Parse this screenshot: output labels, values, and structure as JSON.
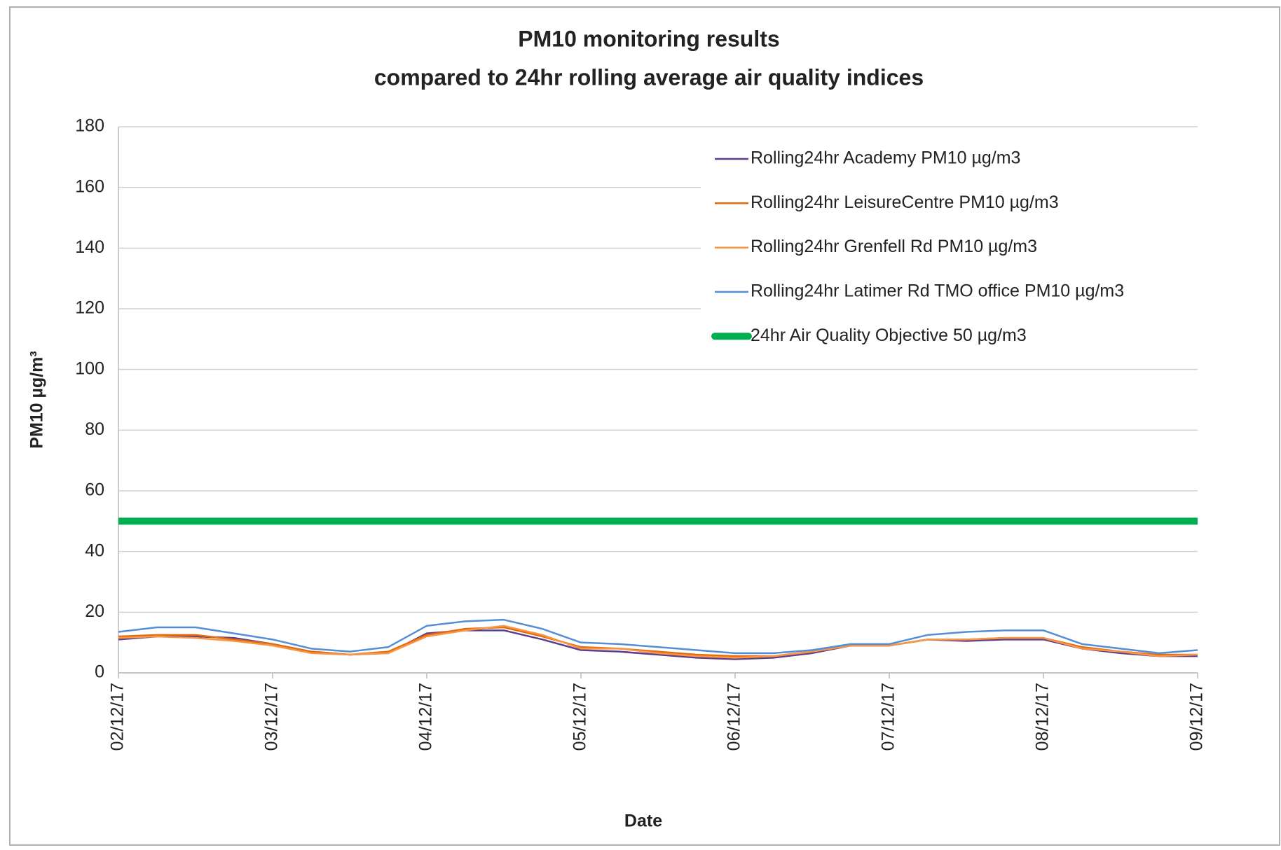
{
  "chart_data": {
    "type": "line",
    "title": [
      "PM10 monitoring results",
      "compared to 24hr rolling average air quality indices"
    ],
    "y_label": "PM10 µg/m³",
    "x_label": "Date",
    "categories": [
      "02/12/17",
      null,
      null,
      null,
      "03/12/17",
      null,
      null,
      null,
      "04/12/17",
      null,
      null,
      null,
      "05/12/17",
      null,
      null,
      null,
      "06/12/17",
      null,
      null,
      null,
      "07/12/17",
      null,
      null,
      null,
      "08/12/17",
      null,
      null,
      null,
      "09/12/17"
    ],
    "ylim": [
      0,
      180
    ],
    "yticks": [
      0,
      20,
      40,
      60,
      80,
      100,
      120,
      140,
      160,
      180
    ],
    "grid": true,
    "legend": "upper right",
    "series": [
      {
        "name": "Rolling24hr Academy PM10 µg/m3",
        "color": "#5b3f8c",
        "width": 2.5,
        "values": [
          11,
          12,
          12,
          11.5,
          9.5,
          7,
          6,
          6.5,
          13,
          14,
          14,
          11,
          7.5,
          7,
          6,
          5,
          4.5,
          5,
          6.5,
          9,
          9,
          11,
          10.5,
          11,
          11,
          8,
          6.5,
          5.5,
          5.5
        ]
      },
      {
        "name": "Rolling24hr LeisureCentre PM10 µg/m3",
        "color": "#e36c0a",
        "width": 2.5,
        "values": [
          12,
          12.5,
          12.5,
          11,
          9.5,
          7,
          6,
          7,
          12.5,
          14.5,
          15,
          12,
          8.5,
          8,
          7,
          6,
          5.5,
          5.5,
          7,
          9,
          9,
          11,
          11,
          11.5,
          11.5,
          8.5,
          7,
          6,
          6
        ]
      },
      {
        "name": "Rolling24hr Grenfell Rd PM10 µg/m3",
        "color": "#f79646",
        "width": 2.5,
        "values": [
          11.5,
          12,
          11.5,
          10.5,
          9,
          6.5,
          6,
          6.5,
          12,
          14,
          15.5,
          12.5,
          8,
          8,
          6.5,
          5.5,
          5,
          5.5,
          7,
          9,
          9,
          11,
          11,
          11.5,
          11.5,
          8,
          7,
          5.5,
          6
        ]
      },
      {
        "name": "Rolling24hr Latimer Rd TMO office PM10 µg/m3",
        "color": "#558ed5",
        "width": 2.5,
        "values": [
          13.5,
          15,
          15,
          13,
          11,
          8,
          7,
          8.5,
          15.5,
          17,
          17.5,
          14.5,
          10,
          9.5,
          8.5,
          7.5,
          6.5,
          6.5,
          7.5,
          9.5,
          9.5,
          12.5,
          13.5,
          14,
          14,
          9.5,
          8,
          6.5,
          7.5
        ]
      },
      {
        "name": "24hr Air Quality Objective 50 µg/m3",
        "color": "#00b050",
        "width": 10,
        "values": [
          50,
          50,
          50,
          50,
          50,
          50,
          50,
          50,
          50,
          50,
          50,
          50,
          50,
          50,
          50,
          50,
          50,
          50,
          50,
          50,
          50,
          50,
          50,
          50,
          50,
          50,
          50,
          50,
          50
        ]
      }
    ]
  }
}
